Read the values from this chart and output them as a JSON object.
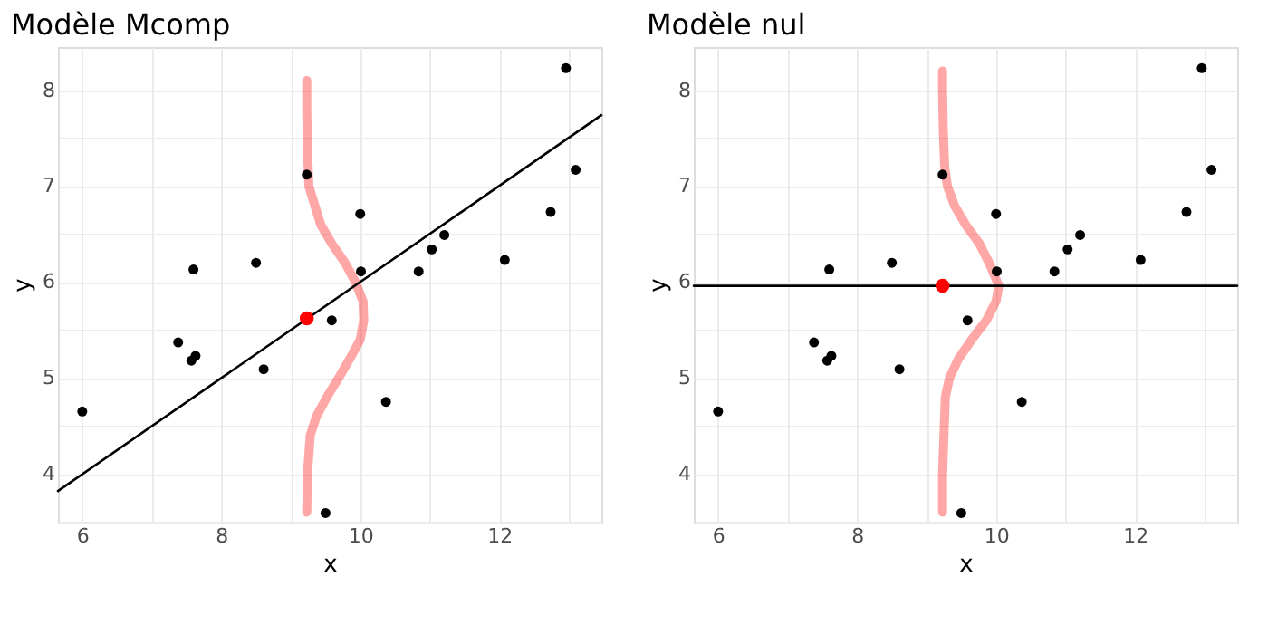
{
  "chart_data": [
    {
      "type": "scatter",
      "title": "Modèle Mcomp",
      "xlabel": "x",
      "ylabel": "y",
      "xlim": [
        5.65,
        13.47
      ],
      "ylim": [
        3.5,
        8.45
      ],
      "xticks": [
        6,
        {
          "value": 7,
          "label": null
        },
        8,
        {
          "value": 9,
          "label": null
        },
        10,
        {
          "value": 11,
          "label": null
        },
        12,
        {
          "value": 13,
          "label": null
        }
      ],
      "yticks": [
        {
          "value": 3.5,
          "label": null
        },
        4,
        {
          "value": 4.5,
          "label": null
        },
        5,
        {
          "value": 5.5,
          "label": null
        },
        6,
        {
          "value": 6.5,
          "label": null
        },
        7,
        {
          "value": 7.5,
          "label": null
        },
        8
      ],
      "grid": true,
      "series": [
        {
          "type": "line",
          "color": "#ff0000",
          "x": [
            9.23,
            9.24,
            9.26,
            9.28,
            9.37,
            9.52,
            9.69,
            9.85,
            10.0,
            10.05,
            10.04,
            9.93,
            9.78,
            9.59,
            9.43,
            9.26,
            9.24,
            9.23,
            9.23
          ],
          "values": [
            3.6,
            4.0,
            4.2,
            4.4,
            4.6,
            4.8,
            5.0,
            5.2,
            5.4,
            5.6,
            5.8,
            6.0,
            6.2,
            6.4,
            6.6,
            7.0,
            7.4,
            7.8,
            8.1
          ]
        },
        {
          "type": "line",
          "color": "#000000",
          "x": [
            5.65,
            13.47
          ],
          "values": [
            3.82,
            7.74
          ]
        },
        {
          "type": "scatter",
          "color": "#000000",
          "x": [
            6.0,
            7.38,
            7.57,
            7.63,
            7.6,
            8.5,
            8.61,
            9.23,
            9.59,
            9.5,
            10.0,
            10.01,
            10.37,
            10.84,
            11.03,
            11.21,
            12.08,
            12.74,
            12.96,
            13.1
          ],
          "values": [
            4.65,
            5.37,
            5.18,
            5.23,
            6.13,
            6.2,
            5.09,
            7.12,
            5.6,
            3.59,
            6.71,
            6.11,
            4.75,
            6.11,
            6.34,
            6.49,
            6.23,
            6.73,
            8.23,
            7.17
          ]
        },
        {
          "type": "scatter",
          "color": "#ff0000",
          "x": [
            9.23
          ],
          "values": [
            5.62
          ]
        }
      ]
    },
    {
      "type": "scatter",
      "title": "Modèle nul",
      "xlabel": "x",
      "ylabel": "y",
      "xlim": [
        5.65,
        13.47
      ],
      "ylim": [
        3.5,
        8.45
      ],
      "xticks": [
        6,
        {
          "value": 7,
          "label": null
        },
        8,
        {
          "value": 9,
          "label": null
        },
        10,
        {
          "value": 11,
          "label": null
        },
        12,
        {
          "value": 13,
          "label": null
        }
      ],
      "yticks": [
        {
          "value": 3.5,
          "label": null
        },
        4,
        {
          "value": 4.5,
          "label": null
        },
        5,
        {
          "value": 5.5,
          "label": null
        },
        6,
        {
          "value": 6.5,
          "label": null
        },
        7,
        {
          "value": 7.5,
          "label": null
        },
        8
      ],
      "grid": true,
      "series": [
        {
          "type": "line",
          "color": "#ff0000",
          "x": [
            9.23,
            9.23,
            9.25,
            9.27,
            9.33,
            9.46,
            9.65,
            9.86,
            10.0,
            10.04,
            9.9,
            9.76,
            9.56,
            9.4,
            9.3,
            9.26,
            9.24,
            9.23,
            9.23
          ],
          "values": [
            3.6,
            4.0,
            4.4,
            4.8,
            5.0,
            5.2,
            5.4,
            5.6,
            5.8,
            5.96,
            6.2,
            6.4,
            6.6,
            6.8,
            7.0,
            7.2,
            7.6,
            8.0,
            8.2
          ]
        },
        {
          "type": "line",
          "color": "#000000",
          "x": [
            5.65,
            13.47
          ],
          "values": [
            5.96,
            5.96
          ]
        },
        {
          "type": "scatter",
          "color": "#000000",
          "x": [
            6.0,
            7.38,
            7.57,
            7.63,
            7.6,
            8.5,
            8.61,
            9.23,
            9.59,
            9.5,
            10.0,
            10.01,
            10.37,
            10.84,
            11.03,
            11.21,
            12.08,
            12.74,
            12.96,
            13.1
          ],
          "values": [
            4.65,
            5.37,
            5.18,
            5.23,
            6.13,
            6.2,
            5.09,
            7.12,
            5.6,
            3.59,
            6.71,
            6.11,
            4.75,
            6.11,
            6.34,
            6.49,
            6.23,
            6.73,
            8.23,
            7.17
          ]
        },
        {
          "type": "scatter",
          "color": "#ff0000",
          "x": [
            9.23
          ],
          "values": [
            5.96
          ]
        }
      ]
    }
  ]
}
